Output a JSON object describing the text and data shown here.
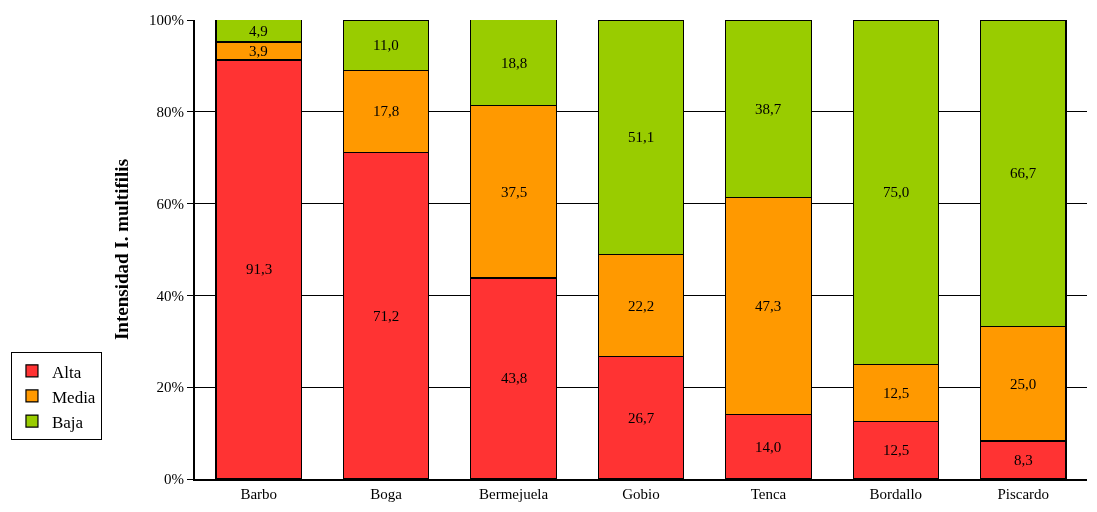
{
  "chart_data": {
    "type": "bar",
    "stacked": true,
    "ylabel": "Intensidad I. multifilis",
    "categories": [
      "Barbo",
      "Boga",
      "Bermejuela",
      "Gobio",
      "Tenca",
      "Bordallo",
      "Piscardo"
    ],
    "series": [
      {
        "name": "Alta",
        "color": "#ff3333",
        "values": [
          91.3,
          71.2,
          43.8,
          26.7,
          14.0,
          12.5,
          8.3
        ],
        "value_labels": [
          "91,3",
          "71,2",
          "43,8",
          "26,7",
          "14,0",
          "12,5",
          "8,3"
        ]
      },
      {
        "name": "Media",
        "color": "#ff9900",
        "values": [
          3.9,
          17.8,
          37.5,
          22.2,
          47.3,
          12.5,
          25.0
        ],
        "value_labels": [
          "3,9",
          "17,8",
          "37,5",
          "22,2",
          "47,3",
          "12,5",
          "25,0"
        ]
      },
      {
        "name": "Baja",
        "color": "#99cc00",
        "values": [
          4.9,
          11.0,
          18.8,
          51.1,
          38.7,
          75.0,
          66.7
        ],
        "value_labels": [
          "4,9",
          "11,0",
          "18,8",
          "51,1",
          "38,7",
          "75,0",
          "66,7"
        ]
      }
    ],
    "ylim": [
      0,
      100
    ],
    "yticks": [
      {
        "value": 0,
        "label": "0%"
      },
      {
        "value": 20,
        "label": "20%"
      },
      {
        "value": 40,
        "label": "40%"
      },
      {
        "value": 60,
        "label": "60%"
      },
      {
        "value": 80,
        "label": "80%"
      },
      {
        "value": 100,
        "label": "100%"
      }
    ],
    "grid": "y",
    "legend": "left"
  }
}
